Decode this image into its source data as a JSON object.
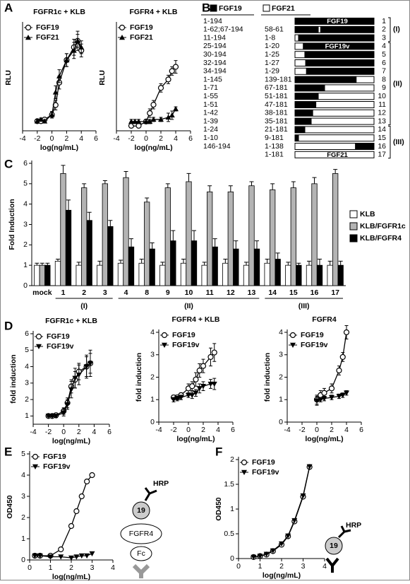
{
  "panel_labels": [
    "A",
    "B",
    "C",
    "D",
    "E",
    "F"
  ],
  "chart_data": [
    {
      "type": "line",
      "title": "FGFR1c + KLB",
      "xlabel": "log(ng/mL)",
      "ylabel": "RLU",
      "x": [
        -2,
        -1.5,
        -1,
        0,
        0.5,
        1,
        2,
        3,
        3.5,
        4
      ],
      "xlim": [
        -4,
        6
      ],
      "xticks": [
        -4,
        -2,
        0,
        2,
        4,
        6
      ],
      "ylim": [
        0.3,
        3.6
      ],
      "legend": "upper left",
      "series": [
        {
          "name": "FGF19",
          "marker": "open-circle",
          "color": "#000000",
          "values": [
            0.6,
            0.6,
            0.65,
            0.8,
            1.1,
            1.8,
            2.5,
            2.9,
            3.1,
            2.8
          ],
          "errors": [
            0.05,
            0.05,
            0.05,
            0.1,
            0.15,
            0.2,
            0.2,
            0.25,
            0.2,
            0.2
          ]
        },
        {
          "name": "FGF21",
          "marker": "triangle",
          "color": "#000000",
          "values": [
            0.6,
            0.65,
            0.6,
            0.8,
            1.5,
            2.0,
            2.5,
            2.8,
            3.1,
            2.9
          ],
          "errors": [
            0.05,
            0.05,
            0.05,
            0.1,
            0.2,
            0.2,
            0.2,
            0.25,
            0.3,
            0.2
          ]
        }
      ]
    },
    {
      "type": "line",
      "title": "FGFR4 + KLB",
      "xlabel": "log(ng/mL)",
      "ylabel": "RLU",
      "x": [
        -2,
        -1.5,
        -1,
        0,
        0.5,
        1,
        2,
        3,
        3.5,
        4
      ],
      "xlim": [
        -4,
        6
      ],
      "xticks": [
        -4,
        -2,
        0,
        2,
        4,
        6
      ],
      "ylim": [
        0.48,
        3.0
      ],
      "legend": "upper left",
      "series": [
        {
          "name": "FGF19",
          "marker": "open-circle",
          "color": "#000000",
          "values": [
            0.6,
            0.65,
            0.6,
            0.7,
            0.9,
            1.1,
            1.5,
            1.7,
            1.9,
            2.0
          ],
          "errors": [
            0.05,
            0.05,
            0.05,
            0.05,
            0.1,
            0.1,
            0.1,
            0.1,
            0.1,
            0.15
          ]
        },
        {
          "name": "FGF21",
          "marker": "triangle",
          "color": "#000000",
          "values": [
            0.7,
            0.7,
            0.7,
            0.7,
            0.7,
            0.75,
            0.75,
            0.8,
            0.85,
            1.0
          ],
          "errors": [
            0.05,
            0.05,
            0.05,
            0.05,
            0.05,
            0.05,
            0.05,
            0.1,
            0.1,
            0.05
          ]
        }
      ]
    },
    {
      "type": "bar",
      "ylabel": "Fold Induction",
      "categories": [
        "mock",
        "1",
        "2",
        "3",
        "4",
        "8",
        "9",
        "10",
        "11",
        "12",
        "13",
        "14",
        "15",
        "16",
        "17"
      ],
      "ylim": [
        0,
        6
      ],
      "yticks": [
        0,
        1,
        2,
        3,
        4,
        5,
        6
      ],
      "legend": "right",
      "groups": [
        {
          "label": "(I)",
          "span": [
            1,
            3
          ]
        },
        {
          "label": "(II)",
          "span": [
            4,
            10
          ]
        },
        {
          "label": "(III)",
          "span": [
            11,
            14
          ]
        }
      ],
      "series": [
        {
          "name": "KLB",
          "color": "#ffffff",
          "values": [
            1.0,
            1.2,
            1.0,
            1.0,
            1.1,
            1.1,
            1.0,
            1.1,
            1.0,
            1.1,
            1.0,
            1.1,
            1.0,
            1.0,
            1.0
          ],
          "errors": [
            0.1,
            0.1,
            0.15,
            0.2,
            0.15,
            0.2,
            0.15,
            0.2,
            0.15,
            0.2,
            0.15,
            0.2,
            0.15,
            0.2,
            0.2
          ]
        },
        {
          "name": "KLB/FGFR1c",
          "color": "#b4b4b4",
          "values": [
            1.0,
            5.5,
            4.8,
            5.0,
            5.3,
            4.1,
            4.8,
            5.1,
            4.6,
            4.6,
            4.9,
            4.7,
            4.8,
            5.0,
            5.5
          ],
          "errors": [
            0.1,
            0.4,
            0.2,
            0.15,
            0.3,
            0.2,
            0.2,
            0.4,
            0.3,
            0.3,
            0.2,
            0.3,
            0.3,
            0.3,
            0.2
          ]
        },
        {
          "name": "KLB/FGFR4",
          "color": "#000000",
          "values": [
            1.0,
            3.7,
            3.2,
            2.9,
            1.9,
            1.8,
            2.2,
            2.2,
            1.9,
            1.8,
            1.8,
            1.3,
            1.0,
            1.0,
            1.0
          ],
          "errors": [
            0.1,
            0.5,
            0.4,
            0.3,
            0.4,
            0.3,
            0.5,
            0.5,
            0.4,
            0.4,
            0.4,
            0.3,
            0.1,
            0.3,
            0.2
          ]
        }
      ]
    },
    {
      "type": "line",
      "title": "FGFR1c + KLB",
      "xlabel": "log(ng/mL)",
      "ylabel": "fold induction",
      "x": [
        -2,
        -1.5,
        -1,
        0,
        0.5,
        1,
        1.5,
        2,
        3,
        3.5
      ],
      "xlim": [
        -4,
        6
      ],
      "xticks": [
        -4,
        -2,
        0,
        2,
        4,
        6
      ],
      "ylim": [
        0.5,
        6
      ],
      "yticks": [
        1,
        2,
        3,
        4,
        5,
        6
      ],
      "legend": "upper left",
      "series": [
        {
          "name": "FGF19",
          "marker": "open-circle",
          "color": "#000000",
          "values": [
            1,
            1,
            1.05,
            1.3,
            1.8,
            2.8,
            3.2,
            3.7,
            4.0,
            4.2
          ],
          "errors": [
            0.05,
            0.05,
            0.1,
            0.2,
            0.3,
            0.4,
            0.5,
            0.5,
            0.6,
            0.6
          ]
        },
        {
          "name": "FGF19v",
          "marker": "down-triangle",
          "color": "#000000",
          "values": [
            1,
            1,
            1,
            1.2,
            1.7,
            2.6,
            3.3,
            3.5,
            4.0,
            4.2
          ],
          "errors": [
            0.05,
            0.05,
            0.1,
            0.2,
            0.3,
            0.5,
            0.6,
            0.6,
            0.7,
            0.8
          ]
        }
      ]
    },
    {
      "type": "line",
      "title": "FGFR4 + KLB",
      "xlabel": "log(ng/mL)",
      "ylabel": "fold induction",
      "x": [
        -2,
        -1.5,
        -1,
        0,
        0.5,
        1,
        1.5,
        2,
        3,
        3.5
      ],
      "xlim": [
        -4,
        6
      ],
      "xticks": [
        -4,
        -2,
        0,
        2,
        4,
        6
      ],
      "ylim": [
        0,
        4
      ],
      "yticks": [
        0,
        1,
        2,
        3,
        4
      ],
      "legend": "upper left",
      "series": [
        {
          "name": "FGF19",
          "marker": "open-circle",
          "color": "#000000",
          "values": [
            1.1,
            1.1,
            1.2,
            1.5,
            1.6,
            1.9,
            2.3,
            2.5,
            2.9,
            3.1
          ],
          "errors": [
            0.1,
            0.1,
            0.1,
            0.2,
            0.2,
            0.3,
            0.3,
            0.3,
            0.4,
            0.4
          ]
        },
        {
          "name": "FGF19v",
          "marker": "down-triangle",
          "color": "#000000",
          "values": [
            1,
            1.05,
            1.1,
            1.2,
            1.2,
            1.3,
            1.5,
            1.6,
            1.7,
            1.7
          ],
          "errors": [
            0.1,
            0.1,
            0.1,
            0.1,
            0.15,
            0.15,
            0.2,
            0.2,
            0.2,
            0.25
          ]
        }
      ]
    },
    {
      "type": "line",
      "title": "FGFR4",
      "xlabel": "log(ng/mL)",
      "ylabel": "fold induction",
      "x": [
        0,
        0.5,
        1,
        2,
        3,
        3.5,
        4
      ],
      "xlim": [
        -4,
        6
      ],
      "xticks": [
        -4,
        -2,
        0,
        2,
        4,
        6
      ],
      "ylim": [
        0,
        4
      ],
      "yticks": [
        0,
        1,
        2,
        3,
        4
      ],
      "legend": "upper left",
      "series": [
        {
          "name": "FGF19",
          "marker": "open-circle",
          "color": "#000000",
          "values": [
            1,
            1.2,
            1.3,
            1.5,
            2.3,
            2.9,
            4.0
          ],
          "errors": [
            0.2,
            0.2,
            0.2,
            0.2,
            0.2,
            0.2,
            0.3
          ]
        },
        {
          "name": "FGF19v",
          "marker": "down-triangle",
          "color": "#000000",
          "values": [
            0.95,
            1,
            1.05,
            1.1,
            1.15,
            1.2,
            1.3
          ],
          "errors": [
            0.2,
            0.1,
            0.1,
            0.1,
            0.1,
            0.1,
            0.1
          ]
        }
      ]
    },
    {
      "type": "line",
      "xlabel": "log(ng/mL)",
      "ylabel": "OD450",
      "x": [
        0.25,
        0.5,
        1,
        1.5,
        2,
        2.25,
        2.5,
        2.75,
        3
      ],
      "xlim": [
        0,
        4
      ],
      "xticks": [
        0,
        1,
        2,
        3,
        4
      ],
      "ylim": [
        0,
        5
      ],
      "yticks": [
        0,
        1,
        2,
        3,
        4,
        5
      ],
      "legend": "upper left",
      "series": [
        {
          "name": "FGF19",
          "marker": "open-circle",
          "color": "#000000",
          "values": [
            0.2,
            0.2,
            0.2,
            0.5,
            1.6,
            2.3,
            3.0,
            3.7,
            4.0
          ]
        },
        {
          "name": "FGF19v",
          "marker": "down-triangle",
          "color": "#000000",
          "values": [
            0.2,
            0.2,
            0.15,
            0.15,
            0.1,
            0.15,
            0.2,
            0.2,
            0.3
          ]
        }
      ]
    },
    {
      "type": "line",
      "xlabel": "log(ng/mL)",
      "ylabel": "OD450",
      "x": [
        0.7,
        1,
        1.3,
        1.6,
        2,
        2.3,
        2.6,
        3,
        3.3
      ],
      "xlim": [
        0,
        4
      ],
      "xticks": [
        0,
        1,
        2,
        3,
        4
      ],
      "ylim": [
        0,
        2
      ],
      "yticks": [
        0,
        0.5,
        1,
        1.5,
        2
      ],
      "legend": "upper left",
      "series": [
        {
          "name": "FGF19",
          "marker": "open-circle",
          "color": "#000000",
          "values": [
            0.03,
            0.05,
            0.08,
            0.15,
            0.28,
            0.45,
            0.75,
            1.25,
            1.85
          ]
        },
        {
          "name": "FGF19v",
          "marker": "down-triangle",
          "color": "#000000",
          "values": [
            0.03,
            0.05,
            0.09,
            0.16,
            0.3,
            0.46,
            0.77,
            1.27,
            1.86
          ]
        }
      ]
    }
  ],
  "construct_diagram": {
    "headers": [
      "FGF19",
      "FGF21"
    ],
    "groups": [
      {
        "label": "(I)",
        "span": [
          1,
          3
        ]
      },
      {
        "label": "(II)",
        "span": [
          4,
          13
        ]
      },
      {
        "label": "(III)",
        "span": [
          14,
          17
        ]
      }
    ],
    "rows": [
      {
        "fgf19": "1-194",
        "fgf21": null,
        "bar_label": "FGF19",
        "number": "1",
        "segments": [
          {
            "fill": "black",
            "width": 100
          }
        ]
      },
      {
        "fgf19": "1-62;67-194",
        "fgf21": "58-61",
        "bar_label": null,
        "number": "2",
        "segments": [
          {
            "fill": "black",
            "width": 30
          },
          {
            "fill": "white",
            "width": 2
          },
          {
            "fill": "black",
            "width": 68
          }
        ]
      },
      {
        "fgf19": "11-194",
        "fgf21": "1-8",
        "bar_label": null,
        "number": "3",
        "segments": [
          {
            "fill": "white",
            "width": 4
          },
          {
            "fill": "black",
            "width": 96
          }
        ]
      },
      {
        "fgf19": "25-194",
        "fgf21": "1-20",
        "bar_label": "FGF19v",
        "number": "4",
        "segments": [
          {
            "fill": "white",
            "width": 10
          },
          {
            "fill": "black",
            "width": 90
          }
        ]
      },
      {
        "fgf19": "30-194",
        "fgf21": "1-25",
        "bar_label": null,
        "number": "5",
        "segments": [
          {
            "fill": "white",
            "width": 12
          },
          {
            "fill": "black",
            "width": 88
          }
        ]
      },
      {
        "fgf19": "32-194",
        "fgf21": "1-27",
        "bar_label": null,
        "number": "6",
        "segments": [
          {
            "fill": "white",
            "width": 13
          },
          {
            "fill": "black",
            "width": 87
          }
        ]
      },
      {
        "fgf19": "34-194",
        "fgf21": "1-29",
        "bar_label": null,
        "number": "7",
        "segments": [
          {
            "fill": "white",
            "width": 14
          },
          {
            "fill": "black",
            "width": 86
          }
        ]
      },
      {
        "fgf19": "1-145",
        "fgf21": "139-181",
        "bar_label": null,
        "number": "8",
        "segments": [
          {
            "fill": "black",
            "width": 78
          },
          {
            "fill": "white",
            "width": 22
          }
        ]
      },
      {
        "fgf19": "1-71",
        "fgf21": "67-181",
        "bar_label": null,
        "number": "9",
        "segments": [
          {
            "fill": "black",
            "width": 38
          },
          {
            "fill": "white",
            "width": 62
          }
        ]
      },
      {
        "fgf19": "1-55",
        "fgf21": "51-181",
        "bar_label": null,
        "number": "10",
        "segments": [
          {
            "fill": "black",
            "width": 30
          },
          {
            "fill": "white",
            "width": 70
          }
        ]
      },
      {
        "fgf19": "1-51",
        "fgf21": "47-181",
        "bar_label": null,
        "number": "11",
        "segments": [
          {
            "fill": "black",
            "width": 27
          },
          {
            "fill": "white",
            "width": 73
          }
        ]
      },
      {
        "fgf19": "1-42",
        "fgf21": "38-181",
        "bar_label": null,
        "number": "12",
        "segments": [
          {
            "fill": "black",
            "width": 23
          },
          {
            "fill": "white",
            "width": 77
          }
        ]
      },
      {
        "fgf19": "1-39",
        "fgf21": "35-181",
        "bar_label": null,
        "number": "13",
        "segments": [
          {
            "fill": "black",
            "width": 21
          },
          {
            "fill": "white",
            "width": 79
          }
        ]
      },
      {
        "fgf19": "1-24",
        "fgf21": "21-181",
        "bar_label": null,
        "number": "14",
        "segments": [
          {
            "fill": "black",
            "width": 13
          },
          {
            "fill": "white",
            "width": 87
          }
        ]
      },
      {
        "fgf19": "1-10",
        "fgf21": "9-181",
        "bar_label": null,
        "number": "15",
        "segments": [
          {
            "fill": "black",
            "width": 5
          },
          {
            "fill": "white",
            "width": 95
          }
        ]
      },
      {
        "fgf19": "146-194",
        "fgf21": "1-138",
        "bar_label": null,
        "number": "16",
        "segments": [
          {
            "fill": "white",
            "width": 76
          },
          {
            "fill": "black",
            "width": 24
          }
        ]
      },
      {
        "fgf19": null,
        "fgf21": "1-181",
        "bar_label": "FGF21",
        "number": "17",
        "segments": [
          {
            "fill": "white",
            "width": 100
          }
        ]
      }
    ]
  },
  "schematic_E": {
    "labels": [
      "HRP",
      "19",
      "FGFR4",
      "Fc"
    ]
  },
  "schematic_F": {
    "labels": [
      "HRP",
      "19"
    ]
  }
}
